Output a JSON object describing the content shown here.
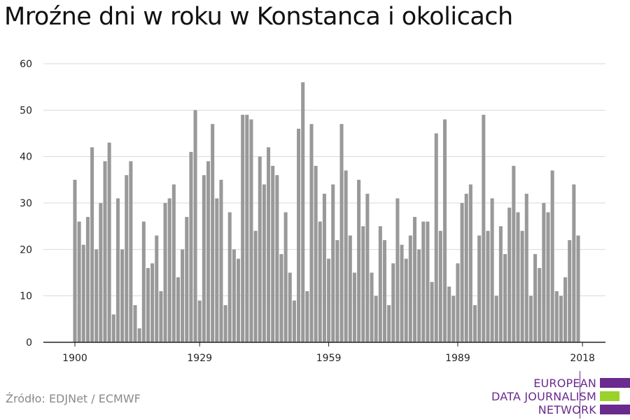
{
  "title": "Mroźne dni w roku w Konstanca i okolicach",
  "source": "Źródło: EDJNet / ECMWF",
  "logo": {
    "line1": "EUROPEAN",
    "line2": "DATA JOURNALISM",
    "line3": "NETWORK",
    "color_primary": "#6a2a8e",
    "color_accent": "#9ad12b"
  },
  "colors": {
    "bar": "#999999",
    "grid": "#d9d9d9",
    "axis": "#222222"
  },
  "chart_data": {
    "type": "bar",
    "title": "Mroźne dni w roku w Konstanca i okolicach",
    "xlabel": "",
    "ylabel": "",
    "ylim": [
      0,
      60
    ],
    "yticks": [
      0,
      10,
      20,
      30,
      40,
      50,
      60
    ],
    "xticks": [
      1900,
      1929,
      1959,
      1989,
      2018
    ],
    "grid": true,
    "x_start": 1900,
    "x_end": 2018,
    "values": [
      35,
      26,
      21,
      27,
      42,
      20,
      30,
      39,
      43,
      6,
      31,
      20,
      36,
      39,
      8,
      3,
      26,
      16,
      17,
      23,
      11,
      30,
      31,
      34,
      14,
      20,
      27,
      41,
      50,
      9,
      36,
      39,
      47,
      31,
      35,
      8,
      28,
      20,
      18,
      49,
      49,
      48,
      24,
      40,
      34,
      42,
      38,
      36,
      19,
      28,
      15,
      9,
      46,
      56,
      11,
      47,
      38,
      26,
      32,
      18,
      34,
      22,
      47,
      37,
      23,
      15,
      35,
      25,
      32,
      15,
      10,
      25,
      22,
      8,
      17,
      31,
      21,
      18,
      23,
      27,
      20,
      26,
      26,
      13,
      45,
      24,
      48,
      12,
      10,
      17,
      30,
      32,
      34,
      8,
      23,
      49,
      24,
      31,
      10,
      25,
      19,
      29,
      38,
      28,
      24,
      32,
      10,
      19,
      16,
      30,
      28,
      37,
      11,
      10,
      14,
      22,
      34,
      23
    ]
  }
}
